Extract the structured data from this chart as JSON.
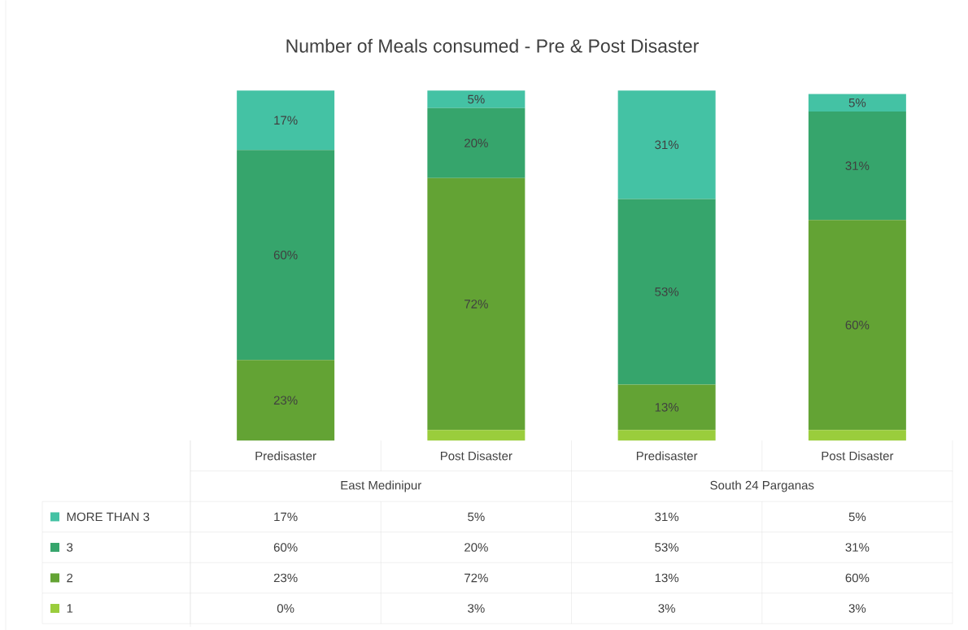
{
  "chart_data": {
    "type": "bar",
    "stacked": true,
    "title": "Number of Meals consumed - Pre & Post Disaster",
    "categories": [
      "Predisaster",
      "Post Disaster",
      "Predisaster",
      "Post Disaster"
    ],
    "annotations": [
      "East Medinipur",
      "South 24 Parganas"
    ],
    "legend": "bottom",
    "series": [
      {
        "name": "1",
        "color": "#9acd3c",
        "values": [
          0,
          3,
          3,
          3
        ],
        "value_labels": [
          "0%",
          "3%",
          "3%",
          "3%"
        ]
      },
      {
        "name": "2",
        "color": "#63a334",
        "values": [
          23,
          72,
          13,
          60
        ],
        "value_labels": [
          "23%",
          "72%",
          "13%",
          "60%"
        ]
      },
      {
        "name": "3",
        "color": "#36a56c",
        "values": [
          60,
          20,
          53,
          31
        ],
        "value_labels": [
          "60%",
          "20%",
          "53%",
          "31%"
        ]
      },
      {
        "name": "MORE THAN 3",
        "color": "#44c2a4",
        "values": [
          17,
          5,
          31,
          5
        ],
        "value_labels": [
          "17%",
          "5%",
          "31%",
          "5%"
        ]
      }
    ]
  }
}
